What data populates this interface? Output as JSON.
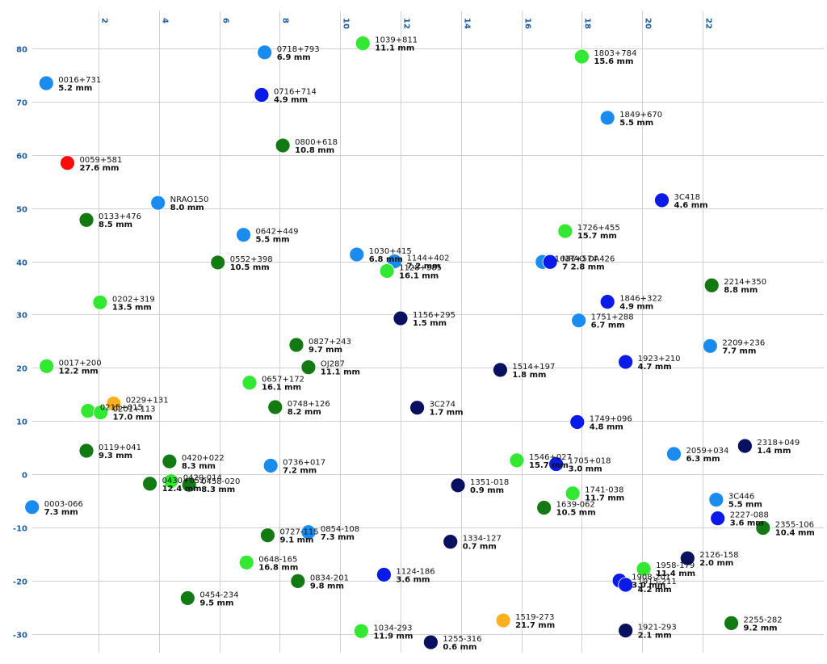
{
  "chart_data": {
    "type": "scatter",
    "title": "",
    "xlabel": "",
    "ylabel": "",
    "xlim": [
      0,
      25
    ],
    "ylim": [
      -33,
      84
    ],
    "x_ticks": [
      2,
      4,
      6,
      8,
      10,
      12,
      14,
      16,
      18,
      20,
      22
    ],
    "y_ticks": [
      80,
      70,
      60,
      50,
      40,
      30,
      20,
      10,
      0,
      -10,
      -20,
      -30
    ],
    "grid": true,
    "legend": "none",
    "colors": {
      "red": "#ff0a0a",
      "orange": "#ffb020",
      "lightgreen": "#33e833",
      "darkgreen": "#137a13",
      "lightblue": "#1a8cf0",
      "blue": "#0a1ae8",
      "navy": "#0a1060"
    },
    "points": [
      {
        "name": "0016+731",
        "value": "5.2 mm",
        "x": 0.27,
        "y": 73.5,
        "color": "lightblue"
      },
      {
        "name": "0718+793",
        "value": "6.9 mm",
        "x": 7.5,
        "y": 79.3,
        "color": "lightblue"
      },
      {
        "name": "1039+811",
        "value": "11.1 mm",
        "x": 10.75,
        "y": 81.0,
        "color": "lightgreen"
      },
      {
        "name": "1803+784",
        "value": "15.6 mm",
        "x": 18.0,
        "y": 78.5,
        "color": "lightgreen"
      },
      {
        "name": "0716+714",
        "value": "4.9 mm",
        "x": 7.4,
        "y": 71.3,
        "color": "blue"
      },
      {
        "name": "1849+670",
        "value": "5.5 mm",
        "x": 18.85,
        "y": 67.0,
        "color": "lightblue"
      },
      {
        "name": "0800+618",
        "value": "10.8 mm",
        "x": 8.1,
        "y": 61.8,
        "color": "darkgreen"
      },
      {
        "name": "0059+581",
        "value": "27.6 mm",
        "x": 0.97,
        "y": 58.5,
        "color": "red"
      },
      {
        "name": "NRAO150",
        "value": "8.0 mm",
        "x": 3.97,
        "y": 51.0,
        "color": "lightblue"
      },
      {
        "name": "3C418",
        "value": "4.6 mm",
        "x": 20.65,
        "y": 51.5,
        "color": "blue"
      },
      {
        "name": "0133+476",
        "value": "8.5 mm",
        "x": 1.6,
        "y": 47.8,
        "color": "darkgreen"
      },
      {
        "name": "1726+455",
        "value": "15.7 mm",
        "x": 17.45,
        "y": 45.7,
        "color": "lightgreen"
      },
      {
        "name": "0642+449",
        "value": "5.5 mm",
        "x": 6.8,
        "y": 45.0,
        "color": "lightblue"
      },
      {
        "name": "0552+398",
        "value": "10.5 mm",
        "x": 5.95,
        "y": 39.8,
        "color": "darkgreen"
      },
      {
        "name": "1030+415",
        "value": "6.8 mm",
        "x": 10.55,
        "y": 41.3,
        "color": "lightblue"
      },
      {
        "name": "1144+402",
        "value": "7.2 mm",
        "x": 11.8,
        "y": 40.0,
        "color": "lightblue"
      },
      {
        "name": "1128+385",
        "value": "16.1 mm",
        "x": 11.55,
        "y": 38.2,
        "color": "lightgreen"
      },
      {
        "name": "1637+574",
        "value": "",
        "x": 16.7,
        "y": 39.9,
        "color": "lightblue"
      },
      {
        "name": "NRAO DA426",
        "value": "7 2.8 mm",
        "x": 16.95,
        "y": 39.9,
        "color": "blue"
      },
      {
        "name": "2214+350",
        "value": "8.8 mm",
        "x": 22.3,
        "y": 35.5,
        "color": "darkgreen"
      },
      {
        "name": "0202+319",
        "value": "13.5 mm",
        "x": 2.05,
        "y": 32.3,
        "color": "lightgreen"
      },
      {
        "name": "1846+322",
        "value": "4.9 mm",
        "x": 18.85,
        "y": 32.4,
        "color": "blue"
      },
      {
        "name": "1156+295",
        "value": "1.5 mm",
        "x": 12.0,
        "y": 29.3,
        "color": "navy"
      },
      {
        "name": "1751+288",
        "value": "6.7 mm",
        "x": 17.9,
        "y": 28.9,
        "color": "lightblue"
      },
      {
        "name": "0827+243",
        "value": "9.7 mm",
        "x": 8.55,
        "y": 24.3,
        "color": "darkgreen"
      },
      {
        "name": "2209+236",
        "value": "7.7 mm",
        "x": 22.25,
        "y": 24.1,
        "color": "lightblue"
      },
      {
        "name": "1923+210",
        "value": "4.7 mm",
        "x": 19.45,
        "y": 21.1,
        "color": "blue"
      },
      {
        "name": "0017+200",
        "value": "12.2 mm",
        "x": 0.28,
        "y": 20.3,
        "color": "lightgreen"
      },
      {
        "name": "OJ287",
        "value": "11.1 mm",
        "x": 8.95,
        "y": 20.1,
        "color": "darkgreen"
      },
      {
        "name": "1514+197",
        "value": "1.8 mm",
        "x": 15.3,
        "y": 19.6,
        "color": "navy"
      },
      {
        "name": "0657+172",
        "value": "16.1 mm",
        "x": 7.0,
        "y": 17.2,
        "color": "lightgreen"
      },
      {
        "name": "0229+131",
        "value": "",
        "x": 2.5,
        "y": 13.3,
        "color": "orange"
      },
      {
        "name": "0748+126",
        "value": "8.2 mm",
        "x": 7.85,
        "y": 12.6,
        "color": "darkgreen"
      },
      {
        "name": "3C274",
        "value": "1.7 mm",
        "x": 12.55,
        "y": 12.5,
        "color": "navy"
      },
      {
        "name": "0215+015",
        "value": "",
        "x": 1.65,
        "y": 11.9,
        "color": "lightgreen"
      },
      {
        "name": "0201+113",
        "value": "17.0 mm",
        "x": 2.07,
        "y": 11.6,
        "color": "lightgreen"
      },
      {
        "name": "1749+096",
        "value": "4.8 mm",
        "x": 17.85,
        "y": 9.8,
        "color": "blue"
      },
      {
        "name": "0119+041",
        "value": "9.3 mm",
        "x": 1.6,
        "y": 4.4,
        "color": "darkgreen"
      },
      {
        "name": "2318+049",
        "value": "1.4 mm",
        "x": 23.4,
        "y": 5.3,
        "color": "navy"
      },
      {
        "name": "2059+034",
        "value": "6.3 mm",
        "x": 21.05,
        "y": 3.8,
        "color": "lightblue"
      },
      {
        "name": "1546+027",
        "value": "15.7 mm",
        "x": 15.85,
        "y": 2.6,
        "color": "lightgreen"
      },
      {
        "name": "0420+022",
        "value": "8.3 mm",
        "x": 4.35,
        "y": 2.4,
        "color": "darkgreen"
      },
      {
        "name": "1705+018",
        "value": "3.0 mm",
        "x": 17.15,
        "y": 1.9,
        "color": "blue"
      },
      {
        "name": "0736+017",
        "value": "7.2 mm",
        "x": 7.7,
        "y": 1.6,
        "color": "lightblue"
      },
      {
        "name": "0430+052",
        "value": "12.4 mm",
        "x": 3.7,
        "y": -1.8,
        "color": "darkgreen"
      },
      {
        "name": "0420-014",
        "value": "",
        "x": 4.4,
        "y": -1.3,
        "color": "lightgreen"
      },
      {
        "name": "0458-020",
        "value": "8.3 mm",
        "x": 5.0,
        "y": -2.0,
        "color": "darkgreen"
      },
      {
        "name": "1351-018",
        "value": "0.9 mm",
        "x": 13.9,
        "y": -2.1,
        "color": "navy"
      },
      {
        "name": "1741-038",
        "value": "11.7 mm",
        "x": 17.7,
        "y": -3.6,
        "color": "lightgreen"
      },
      {
        "name": "3C446",
        "value": "5.5 mm",
        "x": 22.45,
        "y": -4.8,
        "color": "lightblue"
      },
      {
        "name": "0003-066",
        "value": "7.3 mm",
        "x": -0.2,
        "y": -6.2,
        "color": "lightblue"
      },
      {
        "name": "1639-062",
        "value": "10.5 mm",
        "x": 16.75,
        "y": -6.3,
        "color": "darkgreen"
      },
      {
        "name": "2227-088",
        "value": "3.6 mm",
        "x": 22.5,
        "y": -8.3,
        "color": "blue"
      },
      {
        "name": "2355-106",
        "value": "10.4 mm",
        "x": 24.0,
        "y": -10.1,
        "color": "darkgreen"
      },
      {
        "name": "0854-108",
        "value": "7.3 mm",
        "x": 8.95,
        "y": -10.9,
        "color": "lightblue"
      },
      {
        "name": "0727-115",
        "value": "9.1 mm",
        "x": 7.6,
        "y": -11.5,
        "color": "darkgreen"
      },
      {
        "name": "1334-127",
        "value": "0.7 mm",
        "x": 13.65,
        "y": -12.7,
        "color": "navy"
      },
      {
        "name": "2126-158",
        "value": "2.0 mm",
        "x": 21.5,
        "y": -15.8,
        "color": "navy"
      },
      {
        "name": "0648-165",
        "value": "16.8 mm",
        "x": 6.9,
        "y": -16.6,
        "color": "lightgreen"
      },
      {
        "name": "1958-179",
        "value": "11.4 mm",
        "x": 20.05,
        "y": -17.8,
        "color": "lightgreen"
      },
      {
        "name": "1124-186",
        "value": "3.6 mm",
        "x": 11.45,
        "y": -18.9,
        "color": "blue"
      },
      {
        "name": "0834-201",
        "value": "9.8 mm",
        "x": 8.6,
        "y": -20.1,
        "color": "darkgreen"
      },
      {
        "name": "1908-201",
        "value": "3.0 mm",
        "x": 19.25,
        "y": -20.0,
        "color": "blue"
      },
      {
        "name": "1915-211",
        "value": "4.2 mm",
        "x": 19.45,
        "y": -20.8,
        "color": "blue"
      },
      {
        "name": "0454-234",
        "value": "9.5 mm",
        "x": 4.95,
        "y": -23.3,
        "color": "darkgreen"
      },
      {
        "name": "1519-273",
        "value": "21.7 mm",
        "x": 15.4,
        "y": -27.5,
        "color": "orange"
      },
      {
        "name": "2255-282",
        "value": "9.2 mm",
        "x": 22.95,
        "y": -28.0,
        "color": "darkgreen"
      },
      {
        "name": "1034-293",
        "value": "11.9 mm",
        "x": 10.7,
        "y": -29.5,
        "color": "lightgreen"
      },
      {
        "name": "1921-293",
        "value": "2.1 mm",
        "x": 19.45,
        "y": -29.4,
        "color": "navy"
      },
      {
        "name": "1255-316",
        "value": "0.6 mm",
        "x": 13.0,
        "y": -31.6,
        "color": "navy"
      }
    ]
  }
}
